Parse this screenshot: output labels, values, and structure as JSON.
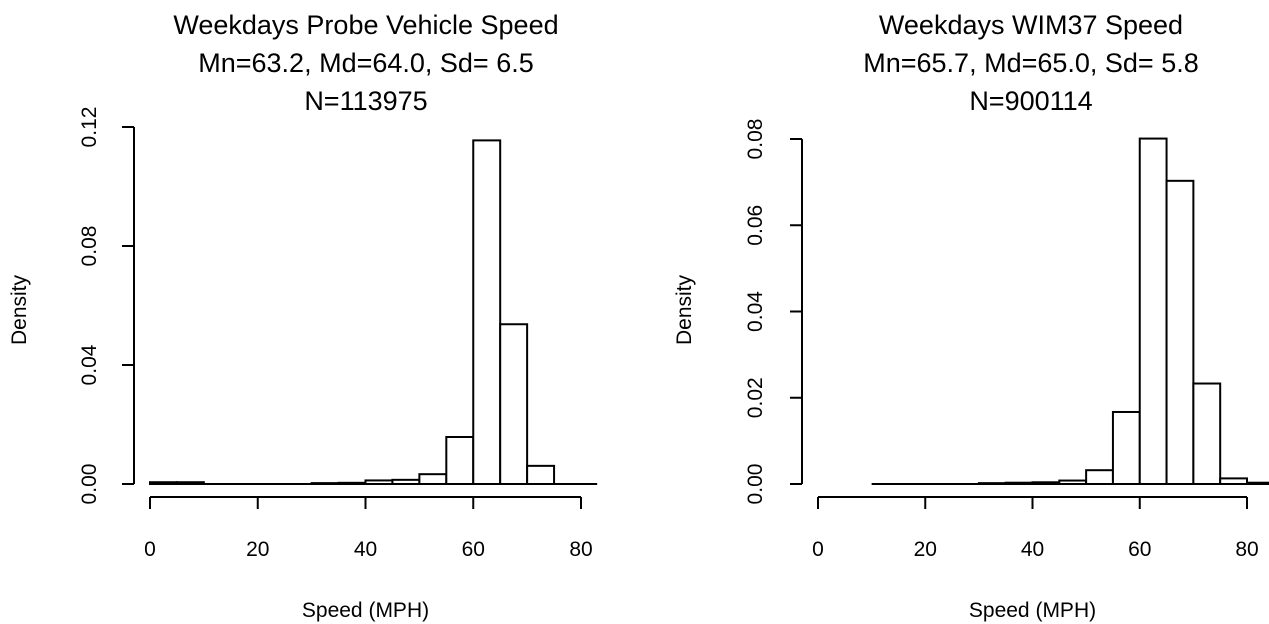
{
  "chart_data": [
    {
      "type": "bar",
      "title": [
        "Weekdays Probe Vehicle Speed",
        "Mn=63.2, Md=64.0, Sd= 6.5",
        "N=113975"
      ],
      "xlabel": "Speed (MPH)",
      "ylabel": "Density",
      "xlim": [
        0,
        80
      ],
      "ylim": [
        0,
        0.12
      ],
      "xticks": [
        0,
        20,
        40,
        60,
        80
      ],
      "xtick_labels": [
        "0",
        "20",
        "40",
        "60",
        "80"
      ],
      "yticks": [
        0,
        0.04,
        0.08,
        0.12
      ],
      "ytick_labels": [
        "0.00",
        "0.04",
        "0.08",
        "0.12"
      ],
      "bin_width": 5,
      "bins": [
        {
          "x0": 0,
          "x1": 5,
          "density": 0.0006
        },
        {
          "x0": 5,
          "x1": 10,
          "density": 0.0006
        },
        {
          "x0": 30,
          "x1": 35,
          "density": 0.0003
        },
        {
          "x0": 35,
          "x1": 40,
          "density": 0.0004
        },
        {
          "x0": 40,
          "x1": 45,
          "density": 0.0012
        },
        {
          "x0": 45,
          "x1": 50,
          "density": 0.0014
        },
        {
          "x0": 50,
          "x1": 55,
          "density": 0.0033
        },
        {
          "x0": 55,
          "x1": 60,
          "density": 0.0158
        },
        {
          "x0": 60,
          "x1": 65,
          "density": 0.1155
        },
        {
          "x0": 65,
          "x1": 70,
          "density": 0.0537
        },
        {
          "x0": 70,
          "x1": 75,
          "density": 0.0061
        }
      ],
      "baseline": {
        "x0": 0,
        "x1": 83
      }
    },
    {
      "type": "bar",
      "title": [
        "Weekdays WIM37 Speed",
        "Mn=65.7, Md=65.0, Sd= 5.8",
        "N=900114"
      ],
      "xlabel": "Speed (MPH)",
      "ylabel": "Density",
      "xlim": [
        0,
        80
      ],
      "ylim": [
        0,
        0.08
      ],
      "xticks": [
        0,
        20,
        40,
        60,
        80
      ],
      "xtick_labels": [
        "0",
        "20",
        "40",
        "60",
        "80"
      ],
      "yticks": [
        0,
        0.02,
        0.04,
        0.06,
        0.08
      ],
      "ytick_labels": [
        "0.00",
        "0.02",
        "0.04",
        "0.06",
        "0.08"
      ],
      "bin_width": 5,
      "bins": [
        {
          "x0": 30,
          "x1": 35,
          "density": 0.0002
        },
        {
          "x0": 35,
          "x1": 40,
          "density": 0.0003
        },
        {
          "x0": 40,
          "x1": 45,
          "density": 0.0004
        },
        {
          "x0": 45,
          "x1": 50,
          "density": 0.0008
        },
        {
          "x0": 50,
          "x1": 55,
          "density": 0.0032
        },
        {
          "x0": 55,
          "x1": 60,
          "density": 0.0167
        },
        {
          "x0": 60,
          "x1": 65,
          "density": 0.0801
        },
        {
          "x0": 65,
          "x1": 70,
          "density": 0.0703
        },
        {
          "x0": 70,
          "x1": 75,
          "density": 0.0233
        },
        {
          "x0": 75,
          "x1": 80,
          "density": 0.0013
        },
        {
          "x0": 80,
          "x1": 85,
          "density": 0.0003
        }
      ],
      "baseline": {
        "x0": 10,
        "x1": 85
      }
    }
  ]
}
